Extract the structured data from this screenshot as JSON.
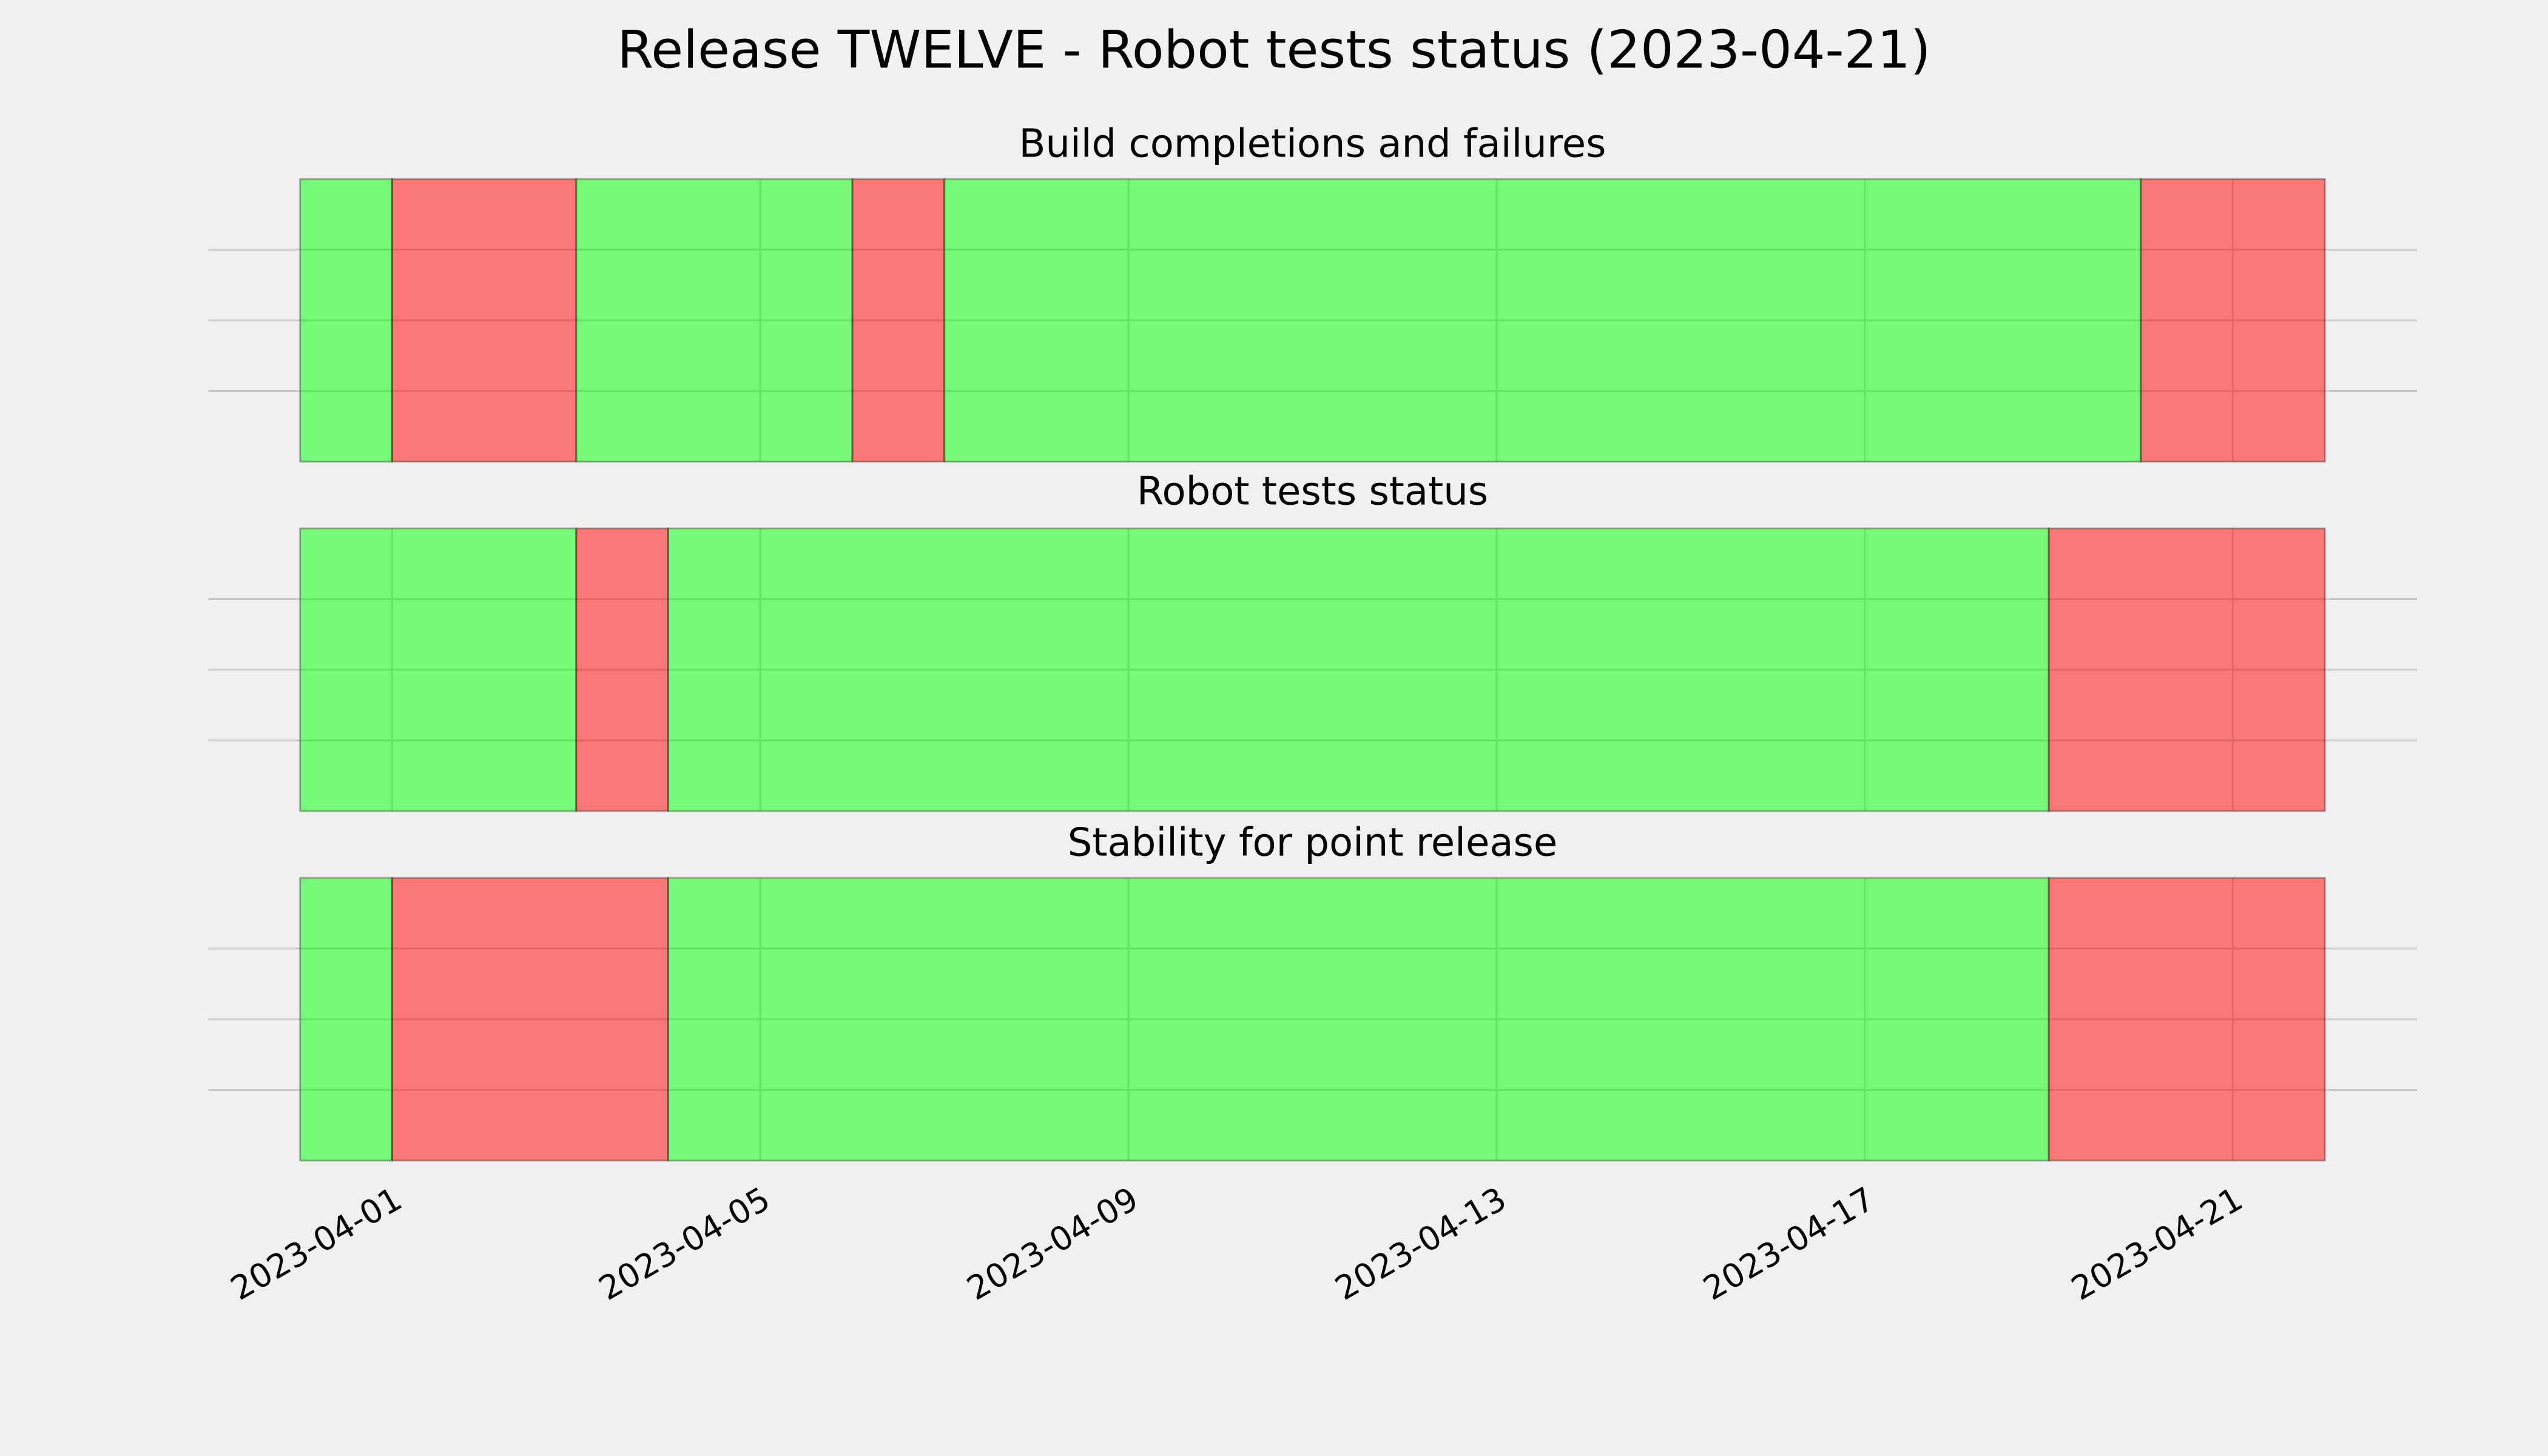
{
  "title": "Release TWELVE - Robot tests status (2023-04-21)",
  "chart_data": [
    {
      "type": "timeline",
      "title": "Build completions and failures",
      "x": [
        "2023-03-31",
        "2023-04-01",
        "2023-04-03",
        "2023-04-06",
        "2023-04-07",
        "2023-04-20"
      ],
      "values": [
        1,
        0,
        1,
        0,
        1,
        0
      ],
      "x_end": "2023-04-22",
      "status_colors": {
        "0": "#ff0000",
        "1": "#00ff00"
      },
      "alpha": 0.5,
      "xlim": [
        "2023-03-30",
        "2023-04-23"
      ],
      "xticks": [
        "2023-04-01",
        "2023-04-05",
        "2023-04-09",
        "2023-04-13",
        "2023-04-17",
        "2023-04-21"
      ],
      "ylim": [
        0,
        1
      ],
      "yticks": [
        0.25,
        0.5,
        0.75
      ],
      "grid": true,
      "show_xtick_labels": false,
      "show_ytick_labels": false
    },
    {
      "type": "timeline",
      "title": "Robot tests status",
      "x": [
        "2023-03-31",
        "2023-04-03",
        "2023-04-04",
        "2023-04-19"
      ],
      "values": [
        1,
        0,
        1,
        0
      ],
      "x_end": "2023-04-22",
      "status_colors": {
        "0": "#ff0000",
        "1": "#00ff00"
      },
      "alpha": 0.5,
      "xlim": [
        "2023-03-30",
        "2023-04-23"
      ],
      "xticks": [
        "2023-04-01",
        "2023-04-05",
        "2023-04-09",
        "2023-04-13",
        "2023-04-17",
        "2023-04-21"
      ],
      "ylim": [
        0,
        1
      ],
      "yticks": [
        0.25,
        0.5,
        0.75
      ],
      "grid": true,
      "show_xtick_labels": false,
      "show_ytick_labels": false
    },
    {
      "type": "timeline",
      "title": "Stability for point release",
      "x": [
        "2023-03-31",
        "2023-04-01",
        "2023-04-04",
        "2023-04-19"
      ],
      "values": [
        1,
        0,
        1,
        0
      ],
      "x_end": "2023-04-22",
      "status_colors": {
        "0": "#ff0000",
        "1": "#00ff00"
      },
      "alpha": 0.5,
      "xlim": [
        "2023-03-30",
        "2023-04-23"
      ],
      "xticks": [
        "2023-04-01",
        "2023-04-05",
        "2023-04-09",
        "2023-04-13",
        "2023-04-17",
        "2023-04-21"
      ],
      "ylim": [
        0,
        1
      ],
      "yticks": [
        0.25,
        0.5,
        0.75
      ],
      "grid": true,
      "show_xtick_labels": true,
      "show_ytick_labels": false
    }
  ]
}
